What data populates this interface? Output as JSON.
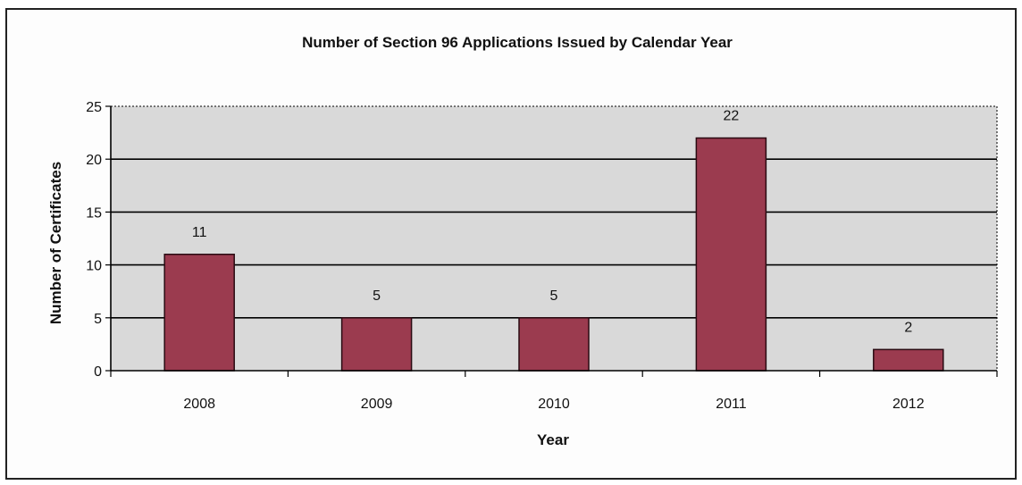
{
  "chart_data": {
    "type": "bar",
    "title": "Number of Section 96 Applications Issued by Calendar Year",
    "xlabel": "Year",
    "ylabel": "Number of Certificates",
    "categories": [
      "2008",
      "2009",
      "2010",
      "2011",
      "2012"
    ],
    "values": [
      11,
      5,
      5,
      22,
      2
    ],
    "ylim": [
      0,
      25
    ],
    "yticks": [
      0,
      5,
      10,
      15,
      20,
      25
    ],
    "grid": true,
    "legend": "none",
    "colors": {
      "bar": "#9b3b4f",
      "plot_background": "#d9d9d9",
      "gridline": "#000000"
    }
  }
}
